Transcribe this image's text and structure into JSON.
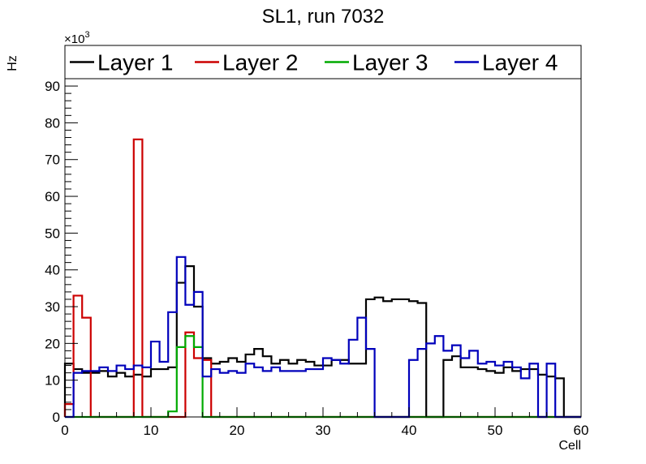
{
  "chart_data": {
    "type": "step",
    "title": "SL1, run 7032",
    "xlabel": "Cell",
    "ylabel": "Hz",
    "y_multiplier_label": "×10",
    "y_multiplier_exp": "3",
    "xlim": [
      0,
      60
    ],
    "ylim": [
      0,
      92
    ],
    "x_ticks": [
      0,
      10,
      20,
      30,
      40,
      50,
      60
    ],
    "y_ticks": [
      0,
      10,
      20,
      30,
      40,
      50,
      60,
      70,
      80,
      90
    ],
    "grid": false,
    "legend_position": "top",
    "series": [
      {
        "name": "Layer 1",
        "color": "#000000",
        "values": [
          14.5,
          13,
          12,
          12,
          12.5,
          11,
          12,
          11,
          11.5,
          11,
          13,
          13,
          13.5,
          36.5,
          41,
          30,
          16,
          14.5,
          15,
          16,
          15,
          17,
          18.5,
          16.5,
          14.5,
          15.5,
          14.5,
          15.5,
          15,
          14,
          14,
          15.5,
          15.5,
          14.5,
          14.5,
          32,
          32.5,
          31.5,
          32,
          32,
          31.5,
          31,
          0,
          0,
          15.5,
          16.5,
          13.5,
          13.5,
          13,
          12.5,
          12,
          13.5,
          12.5,
          13,
          13,
          11.5,
          11,
          10.5,
          0,
          0
        ]
      },
      {
        "name": "Layer 2",
        "color": "#cc0000",
        "values": [
          3.5,
          33,
          27,
          0,
          0,
          0,
          0,
          0,
          75.5,
          0,
          0,
          0,
          0,
          0,
          23,
          16,
          15.5,
          0,
          0,
          0,
          0,
          0,
          0,
          0,
          0,
          0,
          0,
          0,
          0,
          0,
          0,
          0,
          0,
          0,
          0,
          0,
          0,
          0,
          0,
          0,
          0,
          0,
          0,
          0,
          0,
          0,
          0,
          0,
          0,
          0,
          0,
          0,
          0,
          0,
          0,
          0,
          0,
          0,
          0,
          0
        ]
      },
      {
        "name": "Layer 3",
        "color": "#00aa00",
        "values": [
          0,
          0,
          0,
          0,
          0,
          0,
          0,
          0,
          0,
          0,
          0,
          0,
          1.5,
          19,
          22,
          19,
          0,
          0,
          0,
          0,
          0,
          0,
          0,
          0,
          0,
          0,
          0,
          0,
          0,
          0,
          0,
          0,
          0,
          0,
          0,
          0,
          0,
          0,
          0,
          0,
          0,
          0,
          0,
          0,
          0,
          0,
          0,
          0,
          0,
          0,
          0,
          0,
          0,
          0,
          0,
          0,
          0,
          0,
          0,
          0
        ]
      },
      {
        "name": "Layer 4",
        "color": "#0000bb",
        "values": [
          0,
          12,
          12.5,
          12.5,
          13.5,
          12.5,
          14,
          13,
          14,
          13.5,
          20.5,
          15,
          28.5,
          43.5,
          30.5,
          34,
          11,
          13,
          12,
          12.5,
          12,
          14.5,
          13.5,
          12.5,
          13.5,
          12.5,
          12.5,
          12.5,
          13,
          13,
          16,
          15.5,
          14.5,
          21,
          27,
          18.5,
          0,
          0,
          0,
          0,
          15.5,
          18.5,
          20,
          22,
          18,
          19.5,
          16,
          18,
          14.5,
          15,
          14,
          15,
          13.5,
          10.5,
          14.5,
          0,
          14.5,
          0,
          0,
          0
        ]
      }
    ]
  }
}
